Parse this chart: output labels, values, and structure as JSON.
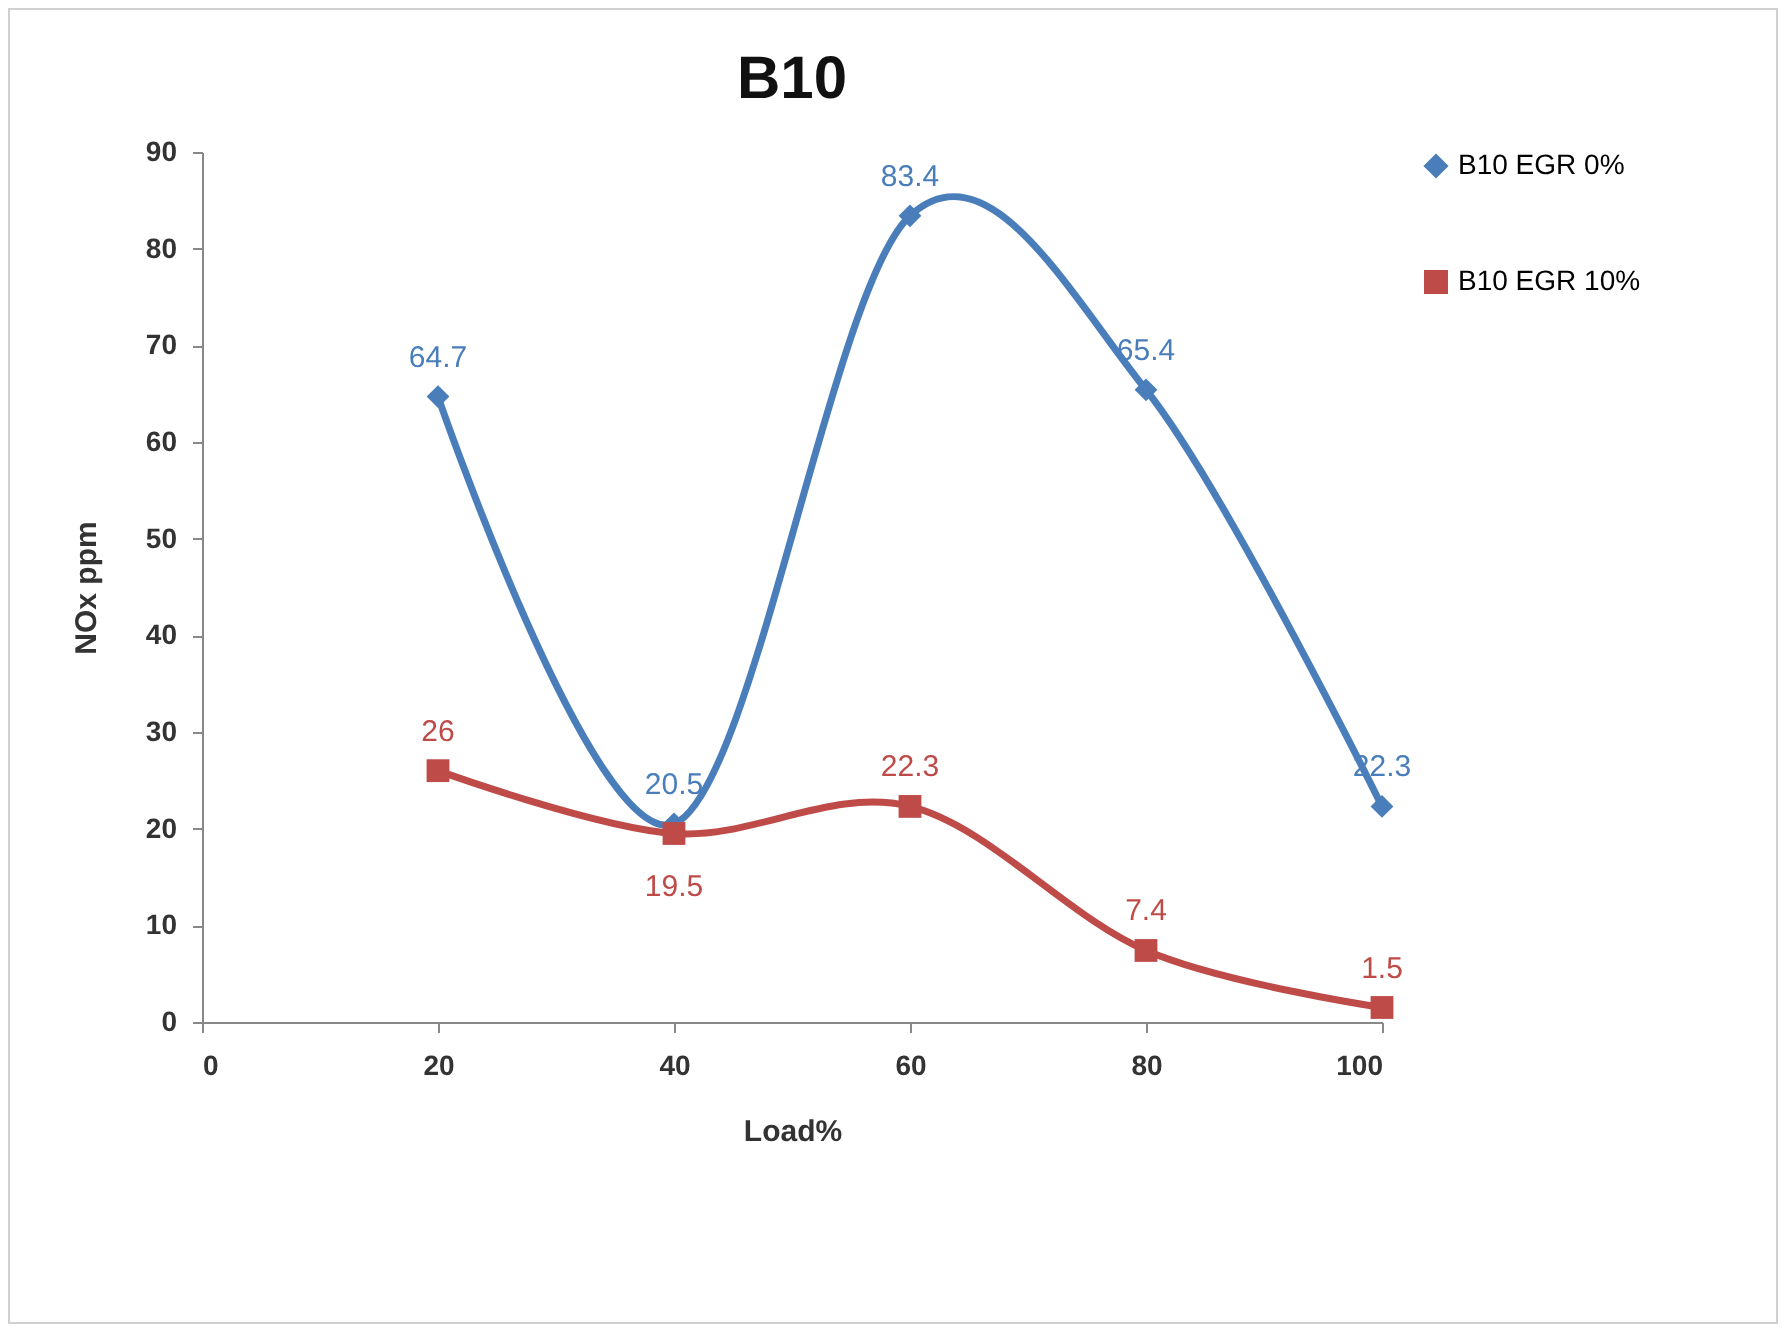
{
  "chart_data": {
    "type": "line",
    "title": "B10",
    "xlabel": "Load%",
    "ylabel": "NOx ppm",
    "x": [
      20,
      40,
      60,
      80,
      100
    ],
    "series": [
      {
        "name": "B10 EGR 0%",
        "color": "#4a7ebb",
        "marker": "diamond",
        "values": [
          64.7,
          20.5,
          83.4,
          65.4,
          22.3
        ]
      },
      {
        "name": "B10 EGR 10%",
        "color": "#be4b48",
        "marker": "square",
        "values": [
          26,
          19.5,
          22.3,
          7.4,
          1.5
        ]
      }
    ],
    "xlim": [
      0,
      100
    ],
    "xticks": [
      0,
      20,
      40,
      60,
      80,
      100
    ],
    "ylim": [
      0,
      90
    ],
    "yticks": [
      0,
      10,
      20,
      30,
      40,
      50,
      60,
      70,
      80,
      90
    ],
    "data_labels": true,
    "legend": "top right",
    "grid": false
  }
}
